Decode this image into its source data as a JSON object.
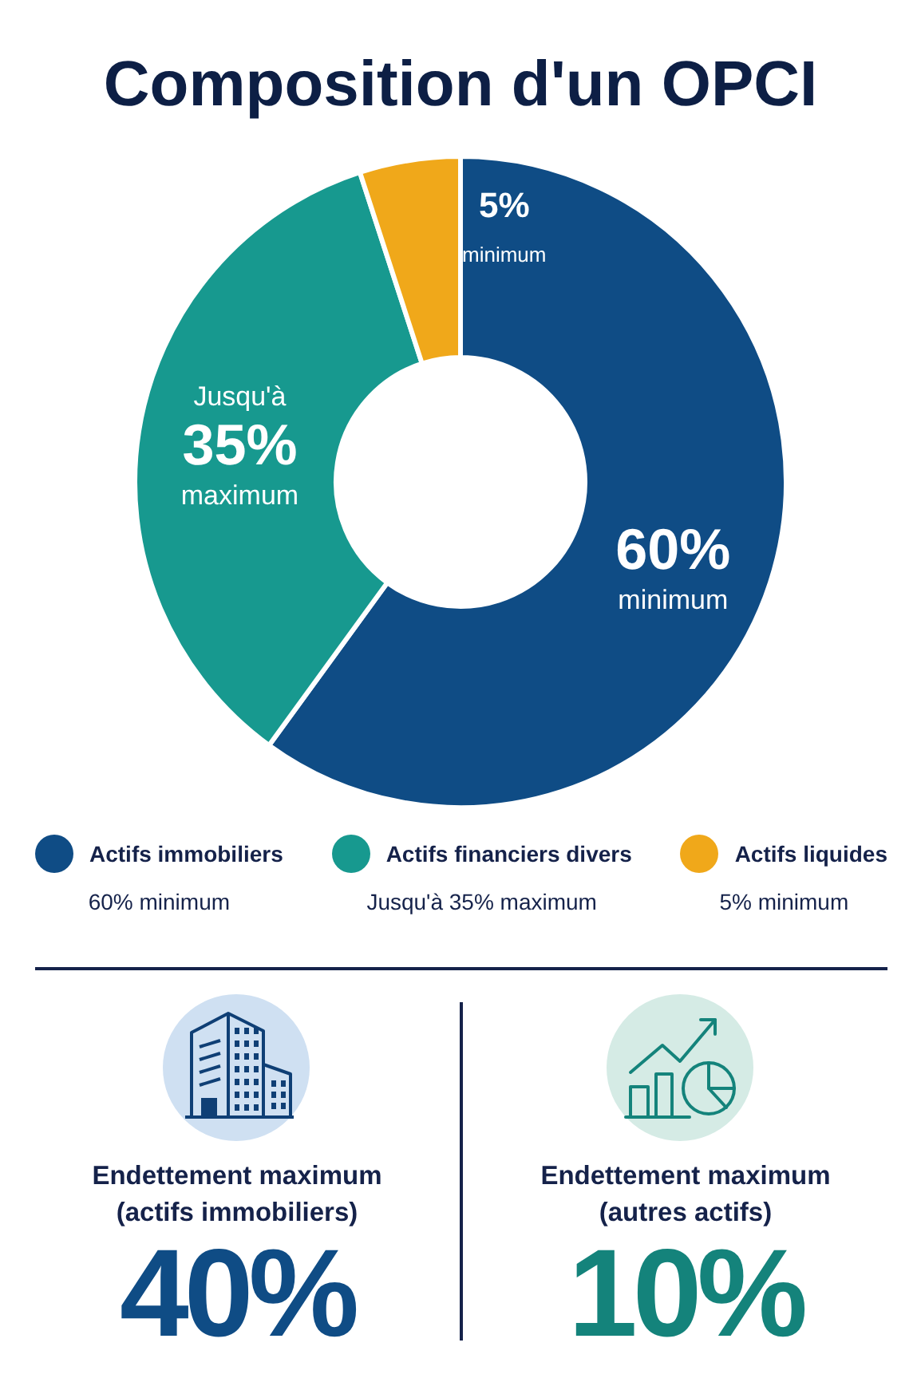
{
  "chart_data": [
    {
      "type": "donut",
      "title": "Composition d'un OPCI",
      "categories": [
        "Actifs immobiliers",
        "Actifs financiers divers",
        "Actifs liquides"
      ],
      "values": [
        60,
        35,
        5
      ],
      "colors": [
        "#0f4c85",
        "#17998f",
        "#f0a81a"
      ],
      "value_labels": [
        "60% minimum",
        "Jusqu'à 35% maximum",
        "5% minimum"
      ],
      "legend": "bottom"
    },
    {
      "type": "other",
      "title": "Endettement maximum (actifs immobiliers)",
      "annotations": [
        "40%"
      ]
    },
    {
      "type": "other",
      "title": "Endettement maximum (autres actifs)",
      "annotations": [
        "10%"
      ]
    }
  ]
}
